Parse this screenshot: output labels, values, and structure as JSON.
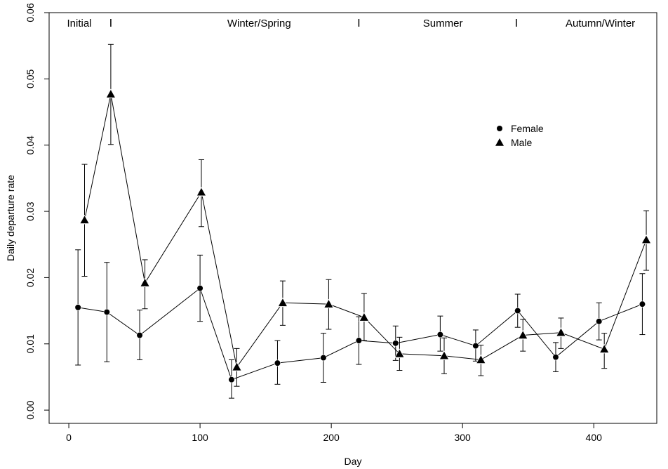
{
  "chart_data": {
    "type": "scatter",
    "xlabel": "Day",
    "ylabel": "Daily departure rate",
    "xlim": [
      -15,
      448
    ],
    "ylim": [
      -0.002,
      0.06
    ],
    "xticks": [
      "0",
      "100",
      "200",
      "300",
      "400"
    ],
    "xtick_values": [
      0,
      100,
      200,
      300,
      400
    ],
    "yticks": [
      "0.00",
      "0.01",
      "0.02",
      "0.03",
      "0.04",
      "0.05",
      "0.06"
    ],
    "ytick_values": [
      0,
      0.01,
      0.02,
      0.03,
      0.04,
      0.05,
      0.06
    ],
    "grid": false,
    "legend": "upper-right",
    "periods": [
      {
        "label": "Initial",
        "x": 8
      },
      {
        "label": "Winter/Spring",
        "x": 145
      },
      {
        "label": "Summer",
        "x": 285
      },
      {
        "label": "Autumn/Winter",
        "x": 405
      }
    ],
    "period_boundaries": [
      32,
      221,
      341
    ],
    "series": [
      {
        "name": "Female",
        "marker": "circle",
        "x": [
          7,
          29,
          54,
          100,
          124,
          159,
          194,
          221,
          249,
          283,
          310,
          342,
          371,
          404,
          437
        ],
        "y": [
          0.0155,
          0.0148,
          0.0113,
          0.0184,
          0.0046,
          0.0071,
          0.0079,
          0.0105,
          0.0101,
          0.0114,
          0.0097,
          0.015,
          0.008,
          0.0134,
          0.016
        ],
        "y_low": [
          0.0068,
          0.0073,
          0.0076,
          0.0134,
          0.0018,
          0.0039,
          0.0042,
          0.0069,
          0.0075,
          0.0089,
          0.0074,
          0.0125,
          0.0058,
          0.0106,
          0.0114
        ],
        "y_high": [
          0.0242,
          0.0223,
          0.0151,
          0.0234,
          0.0076,
          0.0105,
          0.0116,
          0.0141,
          0.0127,
          0.0142,
          0.0121,
          0.0175,
          0.0102,
          0.0162,
          0.0206
        ]
      },
      {
        "name": "Male",
        "marker": "triangle",
        "x": [
          12,
          32,
          58,
          101,
          128,
          163,
          198,
          225,
          252,
          286,
          314,
          346,
          375,
          408,
          440
        ],
        "y": [
          0.0287,
          0.0477,
          0.0192,
          0.0329,
          0.0065,
          0.0162,
          0.016,
          0.014,
          0.0085,
          0.0082,
          0.0076,
          0.0113,
          0.0117,
          0.0092,
          0.0257
        ],
        "y_low": [
          0.0202,
          0.0401,
          0.0153,
          0.0277,
          0.0036,
          0.0128,
          0.0122,
          0.0105,
          0.006,
          0.0055,
          0.0052,
          0.0089,
          0.0093,
          0.0063,
          0.0211
        ],
        "y_high": [
          0.0371,
          0.0552,
          0.0227,
          0.0378,
          0.0093,
          0.0195,
          0.0197,
          0.0176,
          0.011,
          0.0109,
          0.0098,
          0.0137,
          0.0139,
          0.0116,
          0.0301
        ]
      }
    ]
  }
}
